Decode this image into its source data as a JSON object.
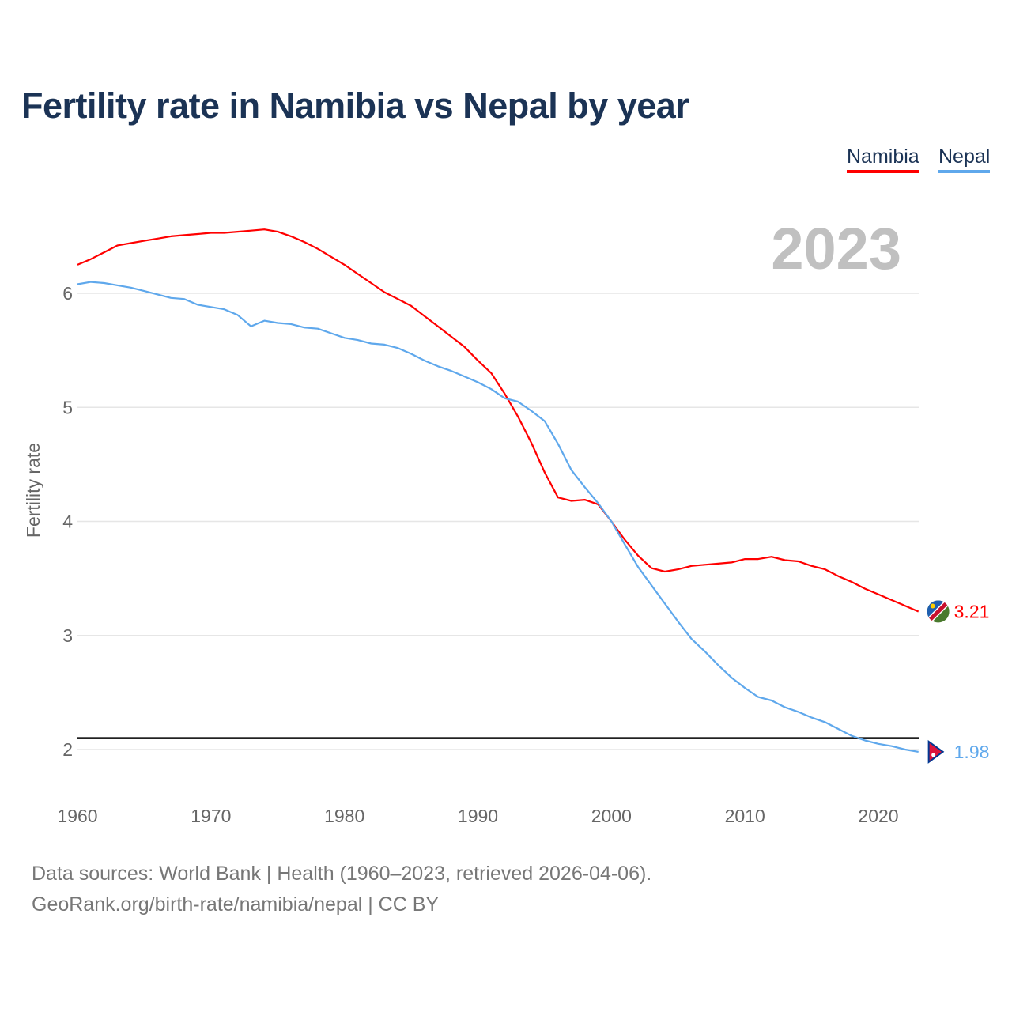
{
  "chart_data": {
    "type": "line",
    "title": "Fertility rate in Namibia vs Nepal by year",
    "xlabel": "",
    "ylabel": "Fertility rate",
    "year_label": "2023",
    "xlim": [
      1960,
      2023
    ],
    "ylim": [
      1.5,
      6.7
    ],
    "x_ticks": [
      1960,
      1970,
      1980,
      1990,
      2000,
      2010,
      2020
    ],
    "y_ticks": [
      2,
      3,
      4,
      5,
      6
    ],
    "grid": true,
    "legend_placement": "top-right",
    "reference_line": 2.1,
    "x": [
      1960,
      1961,
      1962,
      1963,
      1964,
      1965,
      1966,
      1967,
      1968,
      1969,
      1970,
      1971,
      1972,
      1973,
      1974,
      1975,
      1976,
      1977,
      1978,
      1979,
      1980,
      1981,
      1982,
      1983,
      1984,
      1985,
      1986,
      1987,
      1988,
      1989,
      1990,
      1991,
      1992,
      1993,
      1994,
      1995,
      1996,
      1997,
      1998,
      1999,
      2000,
      2001,
      2002,
      2003,
      2004,
      2005,
      2006,
      2007,
      2008,
      2009,
      2010,
      2011,
      2012,
      2013,
      2014,
      2015,
      2016,
      2017,
      2018,
      2019,
      2020,
      2021,
      2022,
      2023
    ],
    "series": [
      {
        "name": "Namibia",
        "color": "#ff0000",
        "end_label": "3.21",
        "values": [
          6.25,
          6.3,
          6.36,
          6.42,
          6.44,
          6.46,
          6.48,
          6.5,
          6.51,
          6.52,
          6.53,
          6.53,
          6.54,
          6.55,
          6.56,
          6.54,
          6.5,
          6.45,
          6.39,
          6.32,
          6.25,
          6.17,
          6.09,
          6.01,
          5.95,
          5.89,
          5.8,
          5.71,
          5.62,
          5.53,
          5.41,
          5.3,
          5.12,
          4.92,
          4.69,
          4.43,
          4.21,
          4.18,
          4.19,
          4.15,
          4.0,
          3.84,
          3.7,
          3.59,
          3.56,
          3.58,
          3.61,
          3.62,
          3.63,
          3.64,
          3.67,
          3.67,
          3.69,
          3.66,
          3.65,
          3.61,
          3.58,
          3.52,
          3.47,
          3.41,
          3.36,
          3.31,
          3.26,
          3.21
        ]
      },
      {
        "name": "Nepal",
        "color": "#5fa8ec",
        "end_label": "1.98",
        "values": [
          6.08,
          6.1,
          6.09,
          6.07,
          6.05,
          6.02,
          5.99,
          5.96,
          5.95,
          5.9,
          5.88,
          5.86,
          5.81,
          5.71,
          5.76,
          5.74,
          5.73,
          5.7,
          5.69,
          5.65,
          5.61,
          5.59,
          5.56,
          5.55,
          5.52,
          5.47,
          5.41,
          5.36,
          5.32,
          5.27,
          5.22,
          5.16,
          5.08,
          5.05,
          4.97,
          4.88,
          4.68,
          4.45,
          4.3,
          4.16,
          4.0,
          3.8,
          3.6,
          3.44,
          3.28,
          3.12,
          2.97,
          2.86,
          2.74,
          2.63,
          2.54,
          2.46,
          2.43,
          2.37,
          2.33,
          2.28,
          2.24,
          2.18,
          2.12,
          2.08,
          2.05,
          2.03,
          2.0,
          1.98
        ]
      }
    ]
  },
  "footer": {
    "line1": "Data sources: World Bank | Health (1960–2023, retrieved 2026-04-06).",
    "line2": "GeoRank.org/birth-rate/namibia/nepal | CC BY"
  }
}
